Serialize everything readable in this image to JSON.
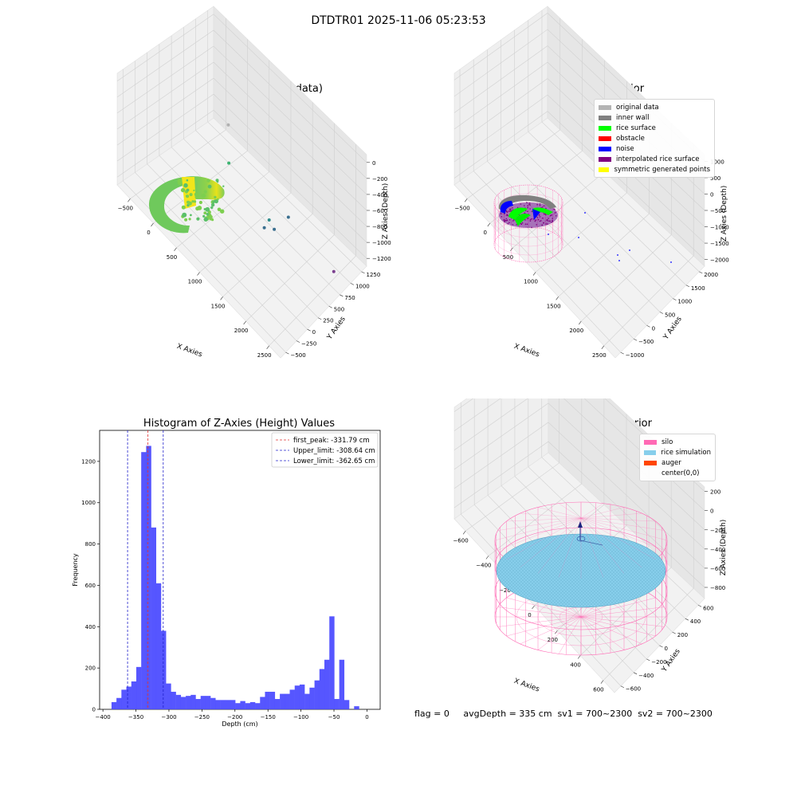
{
  "suptitle": "DTDTR01 2025-11-06 05:23:53",
  "chart_data": [
    {
      "type": "scatter",
      "title": "3D Plot of Silo Interior(row data)",
      "xlabel": "X Axies",
      "ylabel": "Y Axies",
      "zlabel": "Z Axies (Depth)",
      "x_ticks": [
        "−500",
        "0",
        "500",
        "1000",
        "1500",
        "2000",
        "2500"
      ],
      "y_ticks": [
        "−500",
        "−250",
        "0",
        "250",
        "500",
        "750",
        "1000",
        "1250"
      ],
      "z_ticks": [
        "0",
        "−200",
        "−400",
        "−600",
        "−800",
        "−1000",
        "−1200"
      ],
      "outlier_points": [
        {
          "x": 600,
          "y": 500,
          "z": -400,
          "color": "#b0b0b0"
        },
        {
          "x": 700,
          "y": 400,
          "z": -750,
          "color": "#3cb371"
        },
        {
          "x": 1400,
          "y": 500,
          "z": -1050,
          "color": "#2e8b8b"
        },
        {
          "x": 1350,
          "y": 450,
          "z": -1150,
          "color": "#3a6f8f"
        },
        {
          "x": 1500,
          "y": 500,
          "z": -1100,
          "color": "#3a6f8f"
        },
        {
          "x": 1600,
          "y": 700,
          "z": -1000,
          "color": "#3a6f8f"
        },
        {
          "x": 2400,
          "y": 800,
          "z": -1200,
          "color": "#7b3f8f"
        }
      ]
    },
    {
      "type": "scatter",
      "title": "3D classify of Silo Interior",
      "xlabel": "X Axies",
      "ylabel": "Y Axies",
      "zlabel": "Z Axies (Depth)",
      "x_ticks": [
        "−500",
        "0",
        "500",
        "1000",
        "1500",
        "2000",
        "2500"
      ],
      "y_ticks": [
        "−1000",
        "−500",
        "0",
        "500",
        "1000",
        "1500",
        "2000"
      ],
      "z_ticks": [
        "1000",
        "500",
        "0",
        "−500",
        "−1000",
        "−1500",
        "−2000"
      ],
      "legend": [
        {
          "label": "original data",
          "color": "#b3b3b3"
        },
        {
          "label": "inner wall",
          "color": "#808080"
        },
        {
          "label": "rice surface",
          "color": "#00ff00"
        },
        {
          "label": "obstacle",
          "color": "#ff0000"
        },
        {
          "label": "noise",
          "color": "#0000ff"
        },
        {
          "label": "interpolated rice surface",
          "color": "#800080"
        },
        {
          "label": "symmetric generated points",
          "color": "#ffff00"
        }
      ]
    },
    {
      "type": "bar",
      "title": "Histogram of Z-Axies (Height) Values",
      "xlabel": "Depth (cm)",
      "ylabel": "Frequency",
      "xlim": [
        -405,
        20
      ],
      "ylim": [
        0,
        1350
      ],
      "x_ticks": [
        -400,
        -350,
        -300,
        -250,
        -200,
        -150,
        -100,
        -50,
        0
      ],
      "y_ticks": [
        0,
        200,
        400,
        600,
        800,
        1000,
        1200
      ],
      "bin_start": -387,
      "bin_width": 7.5,
      "values": [
        35,
        55,
        95,
        110,
        135,
        205,
        1245,
        1275,
        880,
        610,
        380,
        125,
        85,
        70,
        60,
        65,
        70,
        50,
        65,
        65,
        55,
        45,
        45,
        45,
        45,
        30,
        40,
        30,
        35,
        30,
        60,
        85,
        85,
        50,
        75,
        75,
        95,
        115,
        120,
        75,
        105,
        140,
        195,
        240,
        450,
        50,
        240,
        45,
        0,
        15
      ],
      "bar_color": "#4d4dff",
      "vlines": [
        {
          "x": -331.79,
          "label": "first_peak: -331.79 cm",
          "color": "#e03030"
        },
        {
          "x": -308.64,
          "label": "Upper_limit: -308.64 cm",
          "color": "#2222cc"
        },
        {
          "x": -362.65,
          "label": "Lower_limit: -362.65 cm",
          "color": "#2222cc"
        }
      ]
    },
    {
      "type": "scatter",
      "title": "3D simulation of Silo Interior",
      "xlabel": "X Axies",
      "ylabel": "Y Axies",
      "zlabel": "Z Axies (Depth)",
      "x_ticks": [
        "−600",
        "−400",
        "−200",
        "0",
        "200",
        "400",
        "600"
      ],
      "y_ticks": [
        "−600",
        "−400",
        "−200",
        "0",
        "200",
        "400",
        "600"
      ],
      "z_ticks": [
        "200",
        "0",
        "−200",
        "−400",
        "−600",
        "−800"
      ],
      "legend": [
        {
          "label": "silo",
          "color": "#ff69b4"
        },
        {
          "label": "rice simulation",
          "color": "#87ceeb"
        },
        {
          "label": "auger",
          "color": "#ff4500"
        },
        {
          "label": "center(0,0)",
          "color": ""
        }
      ]
    }
  ],
  "footer": "flag = 0     avgDepth = 335 cm  sv1 = 700~2300  sv2 = 700~2300"
}
